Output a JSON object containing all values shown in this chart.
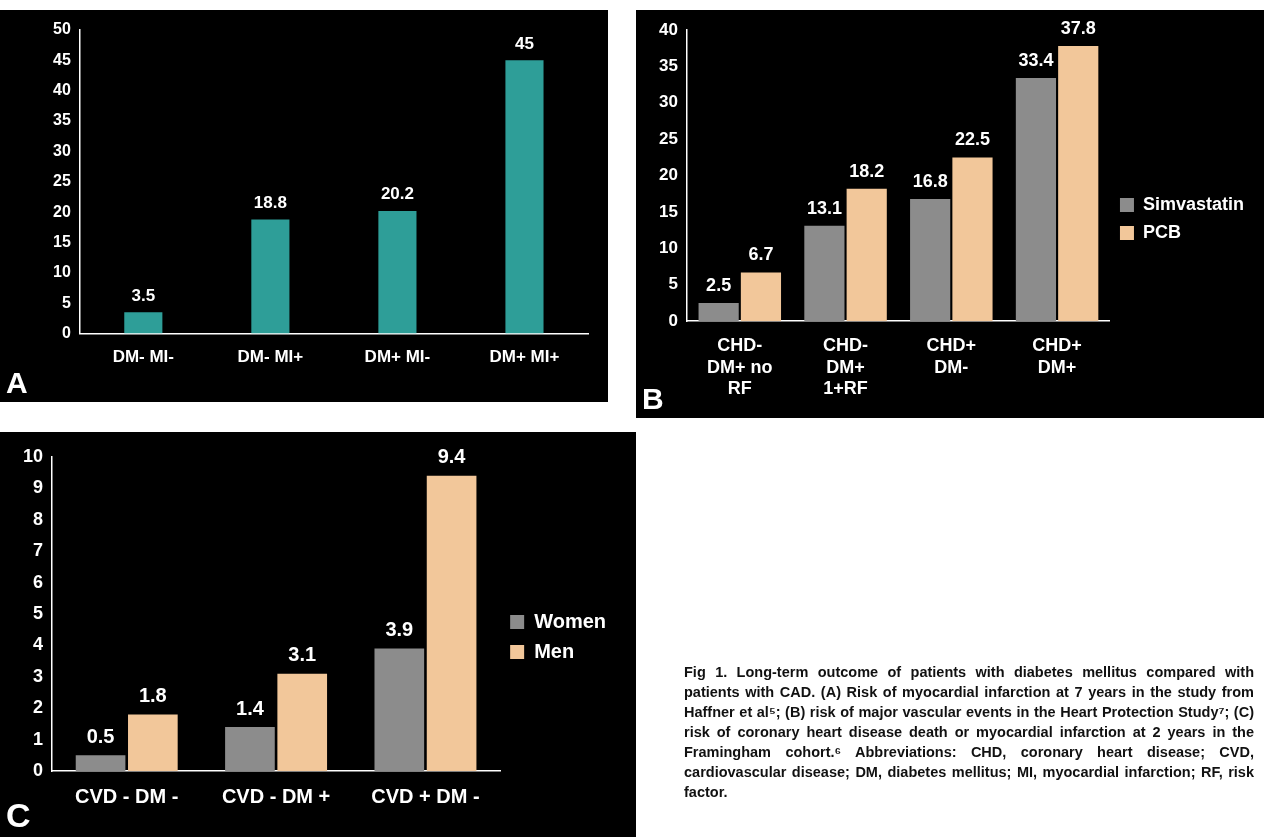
{
  "chart_data": [
    {
      "type": "bar",
      "categories": [
        "DM- MI-",
        "DM- MI+",
        "DM+ MI-",
        "DM+ MI+"
      ],
      "values": [
        3.5,
        18.8,
        20.2,
        45
      ],
      "color": "#2e9e98",
      "ylim": [
        0,
        50
      ],
      "yticks": [
        0,
        5,
        10,
        15,
        20,
        25,
        30,
        35,
        40,
        45,
        50
      ],
      "grid": false,
      "legend": false,
      "data_labels": true,
      "annotations": [
        "A"
      ]
    },
    {
      "type": "bar",
      "categories": [
        "CHD- DM+ no RF",
        "CHD- DM+ 1+RF",
        "CHD+ DM-",
        "CHD+ DM+"
      ],
      "series": [
        {
          "name": "Simvastatin",
          "color": "#8c8c8c",
          "values": [
            2.5,
            13.1,
            16.8,
            33.4
          ]
        },
        {
          "name": "PCB",
          "color": "#f2c79a",
          "values": [
            6.7,
            18.2,
            22.5,
            37.8
          ]
        }
      ],
      "ylim": [
        0,
        40
      ],
      "yticks": [
        0,
        5,
        10,
        15,
        20,
        25,
        30,
        35,
        40
      ],
      "grid": false,
      "legend": "right",
      "data_labels": true,
      "annotations": [
        "B"
      ]
    },
    {
      "type": "bar",
      "categories": [
        "CVD - DM -",
        "CVD - DM +",
        "CVD + DM -"
      ],
      "series": [
        {
          "name": "Women",
          "color": "#8c8c8c",
          "values": [
            0.5,
            1.4,
            3.9
          ]
        },
        {
          "name": "Men",
          "color": "#f2c79a",
          "values": [
            1.8,
            3.1,
            9.4
          ]
        }
      ],
      "ylim": [
        0,
        10
      ],
      "yticks": [
        0,
        1,
        2,
        3,
        4,
        5,
        6,
        7,
        8,
        9,
        10
      ],
      "grid": false,
      "legend": "right",
      "data_labels": true,
      "annotations": [
        "C",
        "Fig 1.  Long-term outcome of patients with diabetes mellitus compared with patients with CAD. (A) Risk of myocardial infarction at 7 years in the study from Haffner et al⁵; (B) risk of major vascular events in the Heart Protection Study⁷; (C) risk of coronary heart disease death or myocardial infarction at 2 years in the Framingham cohort.⁶ Abbreviations: CHD, coronary heart disease; CVD, cardiovascular disease; DM, diabetes mellitus; MI, myocardial infarction; RF, risk factor."
      ]
    }
  ]
}
